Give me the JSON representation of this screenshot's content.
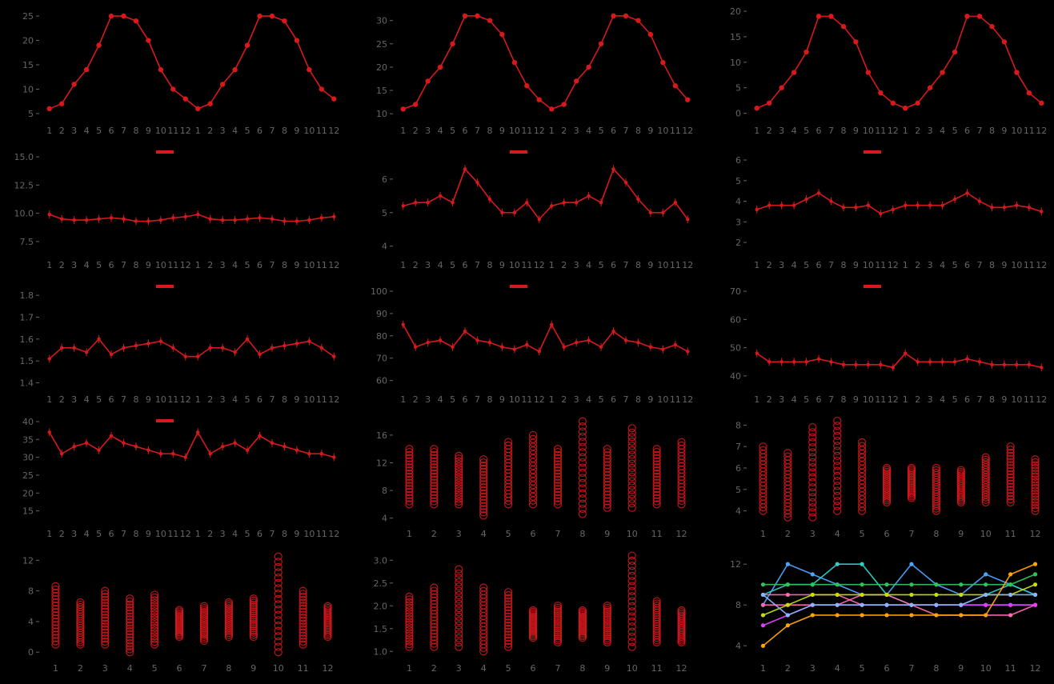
{
  "colors": {
    "background": "#000000",
    "series": "#d7191c",
    "axis_text": "#666666"
  },
  "chart_data": [
    {
      "type": "line",
      "x": [
        "1",
        "2",
        "3",
        "4",
        "5",
        "6",
        "7",
        "8",
        "9",
        "10",
        "11",
        "12",
        "1",
        "2",
        "3",
        "4",
        "5",
        "6",
        "7",
        "8",
        "9",
        "10",
        "11",
        "12"
      ],
      "y": [
        6,
        7,
        11,
        14,
        19,
        25,
        25,
        24,
        20,
        14,
        10,
        8,
        6,
        7,
        11,
        14,
        19,
        25,
        25,
        24,
        20,
        14,
        10,
        8
      ],
      "yticks": [
        5,
        10,
        15,
        20,
        25
      ],
      "ylim": [
        4,
        26
      ]
    },
    {
      "type": "line",
      "x": [
        "1",
        "2",
        "3",
        "4",
        "5",
        "6",
        "7",
        "8",
        "9",
        "10",
        "11",
        "12",
        "1",
        "2",
        "3",
        "4",
        "5",
        "6",
        "7",
        "8",
        "9",
        "10",
        "11",
        "12"
      ],
      "y": [
        11,
        12,
        17,
        20,
        25,
        31,
        31,
        30,
        27,
        21,
        16,
        13,
        11,
        12,
        17,
        20,
        25,
        31,
        31,
        30,
        27,
        21,
        16,
        13
      ],
      "yticks": [
        10,
        15,
        20,
        25,
        30
      ],
      "ylim": [
        9,
        32
      ]
    },
    {
      "type": "line",
      "x": [
        "1",
        "2",
        "3",
        "4",
        "5",
        "6",
        "7",
        "8",
        "9",
        "10",
        "11",
        "12",
        "1",
        "2",
        "3",
        "4",
        "5",
        "6",
        "7",
        "8",
        "9",
        "10",
        "11",
        "12"
      ],
      "y": [
        1,
        2,
        5,
        8,
        12,
        19,
        19,
        17,
        14,
        8,
        4,
        2,
        1,
        2,
        5,
        8,
        12,
        19,
        19,
        17,
        14,
        8,
        4,
        2
      ],
      "yticks": [
        0,
        5,
        10,
        15,
        20
      ],
      "ylim": [
        -1,
        20
      ]
    },
    {
      "type": "line",
      "x": [
        "1",
        "2",
        "3",
        "4",
        "5",
        "6",
        "7",
        "8",
        "9",
        "10",
        "11",
        "12",
        "1",
        "2",
        "3",
        "4",
        "5",
        "6",
        "7",
        "8",
        "9",
        "10",
        "11",
        "12"
      ],
      "y": [
        9.9,
        9.5,
        9.4,
        9.4,
        9.5,
        9.6,
        9.5,
        9.3,
        9.3,
        9.4,
        9.6,
        9.7,
        9.9,
        9.5,
        9.4,
        9.4,
        9.5,
        9.6,
        9.5,
        9.3,
        9.3,
        9.4,
        9.6,
        9.7
      ],
      "yticks": [
        7.5,
        10.0,
        12.5,
        15.0
      ],
      "ylim": [
        6.5,
        16
      ]
    },
    {
      "type": "line",
      "x": [
        "1",
        "2",
        "3",
        "4",
        "5",
        "6",
        "7",
        "8",
        "9",
        "10",
        "11",
        "12",
        "1",
        "2",
        "3",
        "4",
        "5",
        "6",
        "7",
        "8",
        "9",
        "10",
        "11",
        "12"
      ],
      "y": [
        5.2,
        5.3,
        5.3,
        5.5,
        5.3,
        6.3,
        5.9,
        5.4,
        5.0,
        5.0,
        5.3,
        4.8,
        5.2,
        5.3,
        5.3,
        5.5,
        5.3,
        6.3,
        5.9,
        5.4,
        5.0,
        5.0,
        5.3,
        4.8
      ],
      "yticks": [
        4,
        5,
        6
      ],
      "ylim": [
        3.8,
        7
      ]
    },
    {
      "type": "line",
      "x": [
        "1",
        "2",
        "3",
        "4",
        "5",
        "6",
        "7",
        "8",
        "9",
        "10",
        "11",
        "12",
        "1",
        "2",
        "3",
        "4",
        "5",
        "6",
        "7",
        "8",
        "9",
        "10",
        "11",
        "12"
      ],
      "y": [
        3.6,
        3.8,
        3.8,
        3.8,
        4.1,
        4.4,
        4.0,
        3.7,
        3.7,
        3.8,
        3.4,
        3.6,
        3.8,
        3.8,
        3.8,
        3.8,
        4.1,
        4.4,
        4.0,
        3.7,
        3.7,
        3.8,
        3.7,
        3.5
      ],
      "yticks": [
        2,
        3,
        4,
        5,
        6
      ],
      "ylim": [
        1.5,
        6.7
      ]
    },
    {
      "type": "line",
      "x": [
        "1",
        "2",
        "3",
        "4",
        "5",
        "6",
        "7",
        "8",
        "9",
        "10",
        "11",
        "12",
        "1",
        "2",
        "3",
        "4",
        "5",
        "6",
        "7",
        "8",
        "9",
        "10",
        "11",
        "12"
      ],
      "y": [
        1.51,
        1.56,
        1.56,
        1.54,
        1.6,
        1.53,
        1.56,
        1.57,
        1.58,
        1.59,
        1.56,
        1.52,
        1.52,
        1.56,
        1.56,
        1.54,
        1.6,
        1.53,
        1.56,
        1.57,
        1.58,
        1.59,
        1.56,
        1.52
      ],
      "yticks": [
        1.4,
        1.5,
        1.6,
        1.7,
        1.8
      ],
      "ylim": [
        1.38,
        1.87
      ]
    },
    {
      "type": "line",
      "x": [
        "1",
        "2",
        "3",
        "4",
        "5",
        "6",
        "7",
        "8",
        "9",
        "10",
        "11",
        "12",
        "1",
        "2",
        "3",
        "4",
        "5",
        "6",
        "7",
        "8",
        "9",
        "10",
        "11",
        "12"
      ],
      "y": [
        85,
        75,
        77,
        78,
        75,
        82,
        78,
        77,
        75,
        74,
        76,
        73,
        85,
        75,
        77,
        78,
        75,
        82,
        78,
        77,
        75,
        74,
        76,
        73
      ],
      "yticks": [
        60,
        70,
        80,
        90,
        100
      ],
      "ylim": [
        57,
        105
      ]
    },
    {
      "type": "line",
      "x": [
        "1",
        "2",
        "3",
        "4",
        "5",
        "6",
        "7",
        "8",
        "9",
        "10",
        "11",
        "12",
        "1",
        "2",
        "3",
        "4",
        "5",
        "6",
        "7",
        "8",
        "9",
        "10",
        "11",
        "12"
      ],
      "y": [
        48,
        45,
        45,
        45,
        45,
        46,
        45,
        44,
        44,
        44,
        44,
        43,
        48,
        45,
        45,
        45,
        45,
        46,
        45,
        44,
        44,
        44,
        44,
        43
      ],
      "yticks": [
        40,
        50,
        60,
        70
      ],
      "ylim": [
        36,
        74
      ]
    },
    {
      "type": "line",
      "x": [
        "1",
        "2",
        "3",
        "4",
        "5",
        "6",
        "7",
        "8",
        "9",
        "10",
        "11",
        "12",
        "1",
        "2",
        "3",
        "4",
        "5",
        "6",
        "7",
        "8",
        "9",
        "10",
        "11",
        "12"
      ],
      "y": [
        37,
        31,
        33,
        34,
        32,
        36,
        34,
        33,
        32,
        31,
        31,
        30,
        37,
        31,
        33,
        34,
        32,
        36,
        34,
        33,
        32,
        31,
        31,
        30
      ],
      "yticks": [
        15,
        20,
        25,
        30,
        35,
        40
      ],
      "ylim": [
        12,
        42
      ]
    },
    {
      "type": "scatter",
      "x": [
        "1",
        "2",
        "3",
        "4",
        "5",
        "6",
        "7",
        "8",
        "9",
        "10",
        "11",
        "12"
      ],
      "ranges": [
        [
          6,
          14
        ],
        [
          6,
          14
        ],
        [
          6,
          13
        ],
        [
          4.4,
          12.5
        ],
        [
          6,
          15
        ],
        [
          6,
          16
        ],
        [
          6,
          14
        ],
        [
          4.6,
          18
        ],
        [
          5.5,
          14
        ],
        [
          5.5,
          17
        ],
        [
          6,
          14
        ],
        [
          6,
          15
        ]
      ],
      "yticks": [
        4,
        8,
        12,
        16
      ],
      "ylim": [
        3.5,
        19
      ]
    },
    {
      "type": "scatter",
      "x": [
        "1",
        "2",
        "3",
        "4",
        "5",
        "6",
        "7",
        "8",
        "9",
        "10",
        "11",
        "12"
      ],
      "ranges": [
        [
          4,
          7
        ],
        [
          3.7,
          6.7
        ],
        [
          3.7,
          7.9
        ],
        [
          4,
          8.2
        ],
        [
          4,
          7.2
        ],
        [
          4.4,
          6
        ],
        [
          4.6,
          6
        ],
        [
          4,
          6
        ],
        [
          4.4,
          5.9
        ],
        [
          4.4,
          6.5
        ],
        [
          4.4,
          7
        ],
        [
          4,
          6.4
        ]
      ],
      "yticks": [
        4,
        5,
        6,
        7,
        8
      ],
      "ylim": [
        3.5,
        8.5
      ]
    },
    {
      "type": "scatter",
      "x": [
        "1",
        "2",
        "3",
        "4",
        "5",
        "6",
        "7",
        "8",
        "9",
        "10",
        "11",
        "12"
      ],
      "ranges": [
        [
          1,
          8.6
        ],
        [
          1,
          6.5
        ],
        [
          1,
          8
        ],
        [
          0,
          7
        ],
        [
          1,
          7.5
        ],
        [
          2,
          5.5
        ],
        [
          1.5,
          6
        ],
        [
          2,
          6.5
        ],
        [
          2,
          7
        ],
        [
          0,
          12.5
        ],
        [
          1,
          8
        ],
        [
          2,
          6
        ]
      ],
      "yticks": [
        0,
        4,
        8,
        12
      ],
      "ylim": [
        -0.5,
        13.5
      ]
    },
    {
      "type": "scatter",
      "x": [
        "1",
        "2",
        "3",
        "4",
        "5",
        "6",
        "7",
        "8",
        "9",
        "10",
        "11",
        "12"
      ],
      "ranges": [
        [
          1.1,
          2.2
        ],
        [
          1.1,
          2.4
        ],
        [
          1.1,
          2.8
        ],
        [
          1,
          2.4
        ],
        [
          1.1,
          2.3
        ],
        [
          1.3,
          1.9
        ],
        [
          1.2,
          2
        ],
        [
          1.3,
          1.9
        ],
        [
          1.2,
          2
        ],
        [
          1.1,
          3.1
        ],
        [
          1.2,
          2.1
        ],
        [
          1.2,
          1.9
        ]
      ],
      "yticks": [
        1.0,
        1.5,
        2.0,
        2.5,
        3.0
      ],
      "ylim": [
        0.9,
        3.25
      ]
    },
    {
      "type": "line",
      "x": [
        "1",
        "2",
        "3",
        "4",
        "5",
        "6",
        "7",
        "8",
        "9",
        "10",
        "11",
        "12"
      ],
      "series": [
        {
          "color": "#4da3ff",
          "values": [
            8,
            12,
            11,
            10,
            9,
            9,
            12,
            10,
            9,
            11,
            10,
            9
          ]
        },
        {
          "color": "#2bd1c4",
          "values": [
            9,
            10,
            10,
            12,
            12,
            9,
            8,
            8,
            8,
            9,
            10,
            9
          ]
        },
        {
          "color": "#ff69b4",
          "values": [
            9,
            9,
            9,
            9,
            8,
            8,
            8,
            8,
            8,
            8,
            8,
            8
          ]
        },
        {
          "color": "#ff69b4",
          "values": [
            8,
            8,
            8,
            8,
            9,
            9,
            8,
            7,
            7,
            7,
            7,
            8
          ]
        },
        {
          "color": "#e040fb",
          "values": [
            6,
            7,
            8,
            8,
            8,
            8,
            8,
            8,
            8,
            8,
            8,
            8
          ]
        },
        {
          "color": "#c8e000",
          "values": [
            7,
            8,
            9,
            9,
            9,
            9,
            9,
            9,
            9,
            9,
            9,
            10
          ]
        },
        {
          "color": "#2fc45a",
          "values": [
            10,
            10,
            10,
            10,
            10,
            10,
            10,
            10,
            10,
            10,
            10,
            11
          ]
        },
        {
          "color": "#ffa500",
          "values": [
            4,
            6,
            7,
            7,
            7,
            7,
            7,
            7,
            7,
            7,
            11,
            12
          ]
        },
        {
          "color": "#8ab4ff",
          "values": [
            9,
            7,
            8,
            8,
            8,
            8,
            8,
            8,
            8,
            9,
            9,
            9
          ]
        }
      ],
      "yticks": [
        4,
        8,
        12
      ],
      "ylim": [
        3,
        13.5
      ]
    }
  ]
}
